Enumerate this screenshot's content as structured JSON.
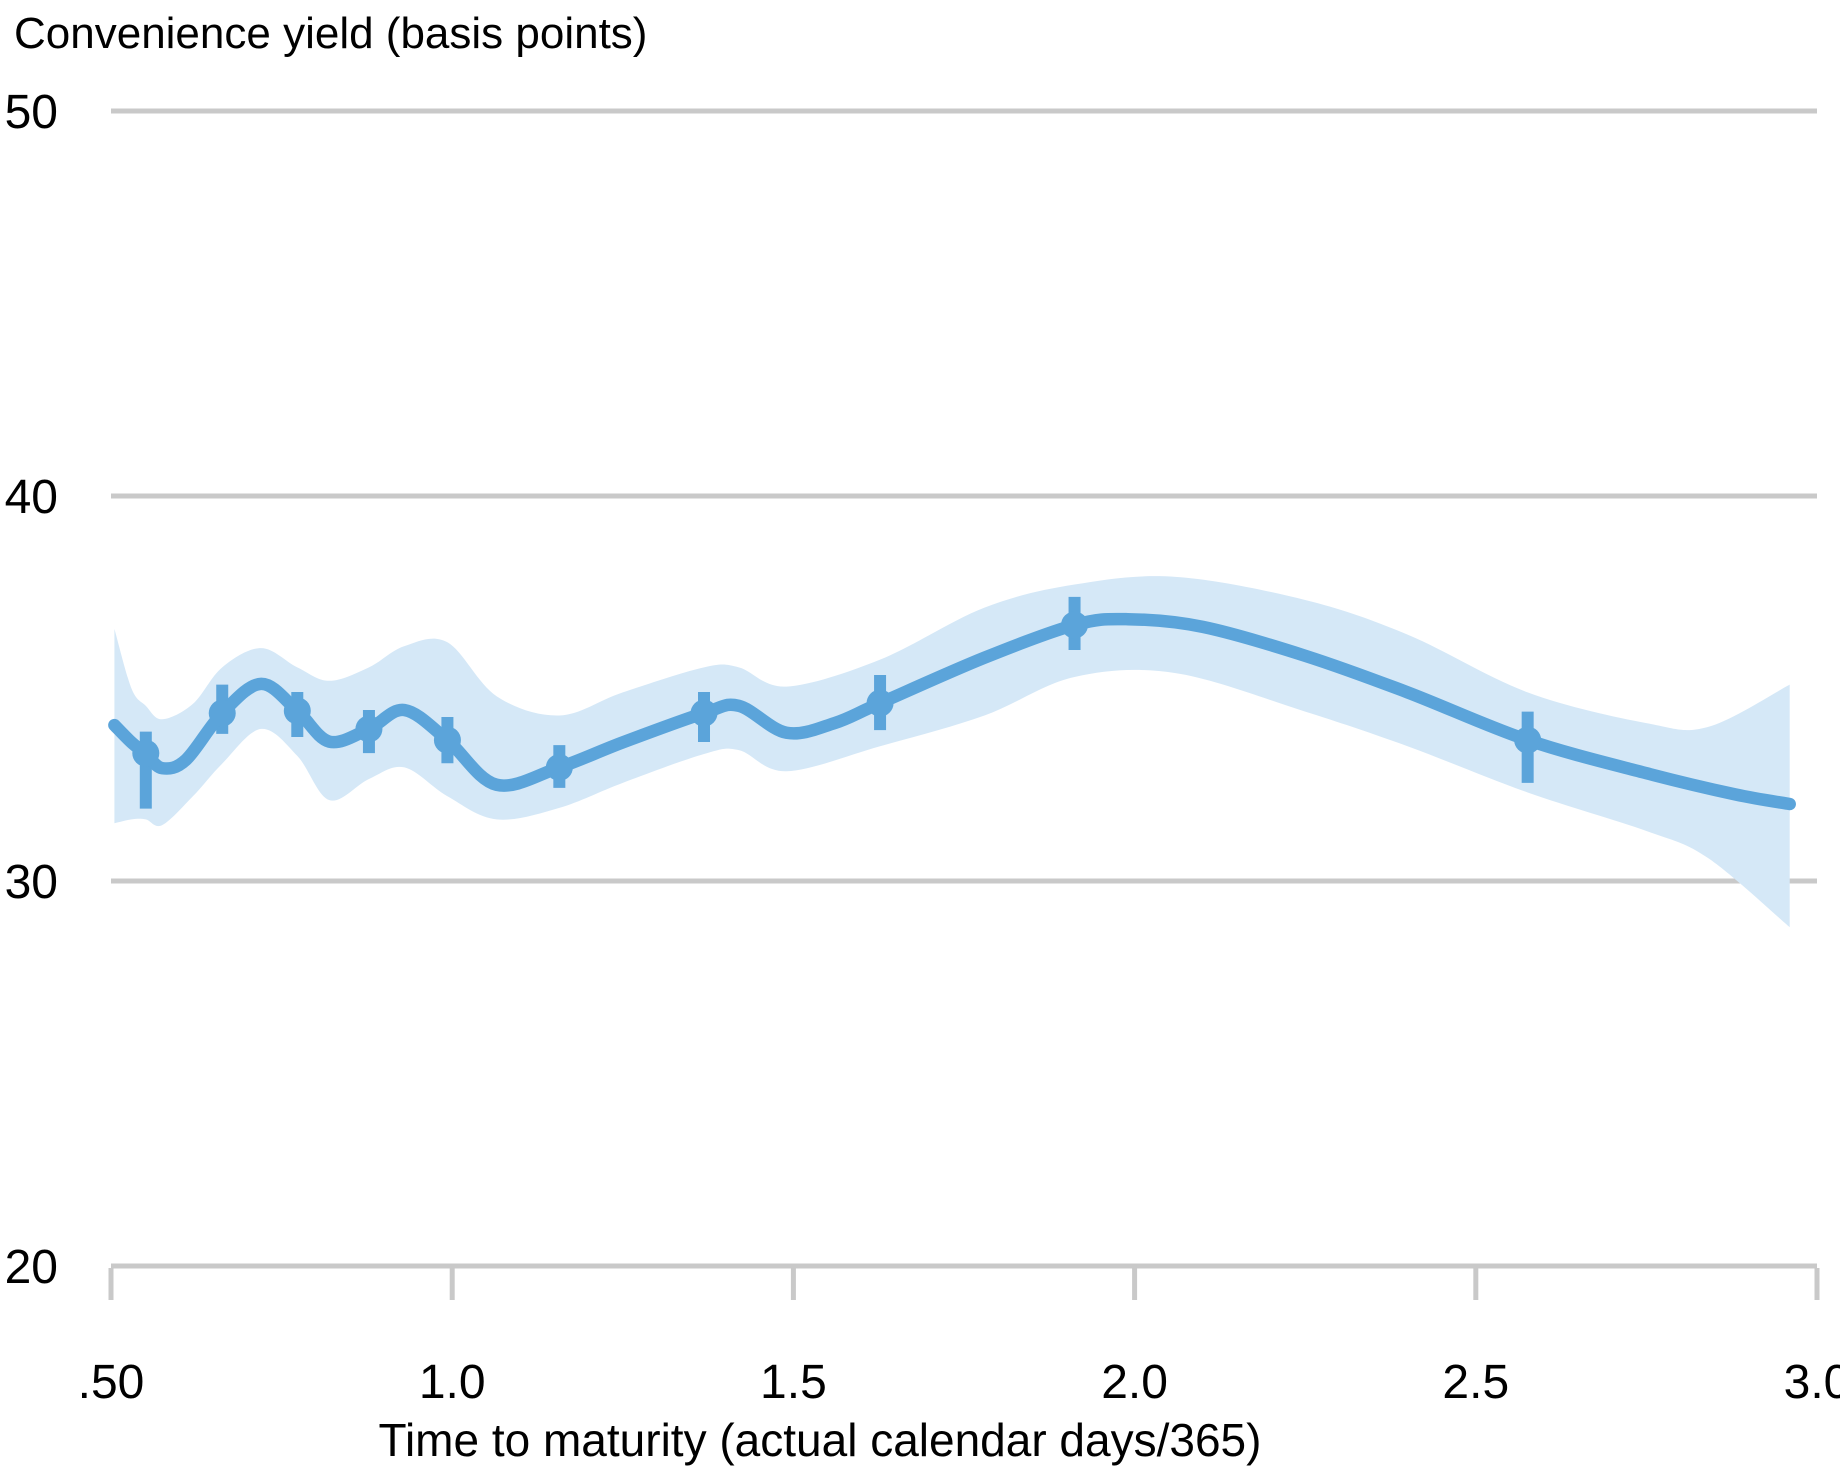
{
  "chart_data": {
    "type": "line",
    "title": "Convenience yield (basis points)",
    "xlabel": "Time to maturity (actual calendar days/365)",
    "ylabel": "Convenience yield (basis points)",
    "xlim": [
      0.5,
      3.0
    ],
    "ylim": [
      20,
      50
    ],
    "grid": "horizontal",
    "legend_position": "none",
    "x_ticks": [
      {
        "value": 0.5,
        "label": ".50"
      },
      {
        "value": 1.0,
        "label": "1.0"
      },
      {
        "value": 1.5,
        "label": "1.5"
      },
      {
        "value": 2.0,
        "label": "2.0"
      },
      {
        "value": 2.5,
        "label": "2.5"
      },
      {
        "value": 3.0,
        "label": "3.0"
      }
    ],
    "y_ticks": [
      {
        "value": 50,
        "label": "50"
      },
      {
        "value": 40,
        "label": "40"
      },
      {
        "value": 30,
        "label": "30"
      },
      {
        "value": 20,
        "label": "20"
      }
    ],
    "colors": {
      "line": "#5ba4da",
      "band": "#d5e8f7",
      "marker": "#5ba4da",
      "grid": "#c9c9c9",
      "text": "#000000",
      "background": "#ffffff"
    },
    "series": [
      {
        "name": "confidence-band",
        "type": "area-band",
        "points_t_upper_lower": [
          [
            0.505,
            36.55,
            31.5
          ],
          [
            0.53,
            35.0,
            31.6
          ],
          [
            0.551,
            34.55,
            31.6
          ],
          [
            0.575,
            34.2,
            31.45
          ],
          [
            0.62,
            34.6,
            32.2
          ],
          [
            0.663,
            35.55,
            33.05
          ],
          [
            0.72,
            36.05,
            33.95
          ],
          [
            0.773,
            35.55,
            33.25
          ],
          [
            0.82,
            35.2,
            32.1
          ],
          [
            0.878,
            35.55,
            32.65
          ],
          [
            0.93,
            36.1,
            32.95
          ],
          [
            0.993,
            36.2,
            32.2
          ],
          [
            1.065,
            34.8,
            31.6
          ],
          [
            1.157,
            34.3,
            31.9
          ],
          [
            1.25,
            34.9,
            32.55
          ],
          [
            1.369,
            35.55,
            33.3
          ],
          [
            1.42,
            35.55,
            33.4
          ],
          [
            1.49,
            35.05,
            32.85
          ],
          [
            1.627,
            35.75,
            33.5
          ],
          [
            1.78,
            37.1,
            34.3
          ],
          [
            1.912,
            37.7,
            35.3
          ],
          [
            2.06,
            37.9,
            35.4
          ],
          [
            2.25,
            37.3,
            34.4
          ],
          [
            2.4,
            36.4,
            33.5
          ],
          [
            2.576,
            34.9,
            32.3
          ],
          [
            2.75,
            34.1,
            31.3
          ],
          [
            2.84,
            34.0,
            30.6
          ],
          [
            2.96,
            35.1,
            28.8
          ]
        ]
      },
      {
        "name": "local-polynomial-fit",
        "type": "smooth-line",
        "points_t_v": [
          [
            0.505,
            34.05
          ],
          [
            0.53,
            33.6
          ],
          [
            0.551,
            33.3
          ],
          [
            0.575,
            32.93
          ],
          [
            0.61,
            33.15
          ],
          [
            0.663,
            34.36
          ],
          [
            0.72,
            35.12
          ],
          [
            0.773,
            34.42
          ],
          [
            0.82,
            33.62
          ],
          [
            0.878,
            33.95
          ],
          [
            0.93,
            34.44
          ],
          [
            0.993,
            33.66
          ],
          [
            1.065,
            32.5
          ],
          [
            1.157,
            32.95
          ],
          [
            1.25,
            33.6
          ],
          [
            1.369,
            34.36
          ],
          [
            1.42,
            34.55
          ],
          [
            1.49,
            33.85
          ],
          [
            1.56,
            34.1
          ],
          [
            1.627,
            34.62
          ],
          [
            1.78,
            35.8
          ],
          [
            1.912,
            36.65
          ],
          [
            1.99,
            36.8
          ],
          [
            2.1,
            36.6
          ],
          [
            2.25,
            35.85
          ],
          [
            2.4,
            34.9
          ],
          [
            2.576,
            33.66
          ],
          [
            2.75,
            32.8
          ],
          [
            2.88,
            32.25
          ],
          [
            2.96,
            32.0
          ]
        ]
      },
      {
        "name": "binned-means-with-ci",
        "type": "scatter-error",
        "points_t_v_hi_lo": [
          [
            0.551,
            33.32,
            33.88,
            31.88
          ],
          [
            0.663,
            34.36,
            35.1,
            33.82
          ],
          [
            0.773,
            34.42,
            34.91,
            33.74
          ],
          [
            0.878,
            33.95,
            34.44,
            33.32
          ],
          [
            0.993,
            33.66,
            34.26,
            33.06
          ],
          [
            1.157,
            32.95,
            33.53,
            32.42
          ],
          [
            1.369,
            34.36,
            34.91,
            33.61
          ],
          [
            1.627,
            34.62,
            35.35,
            33.92
          ],
          [
            1.912,
            36.65,
            37.38,
            36.0
          ],
          [
            2.576,
            33.66,
            34.4,
            32.55
          ]
        ]
      }
    ]
  }
}
